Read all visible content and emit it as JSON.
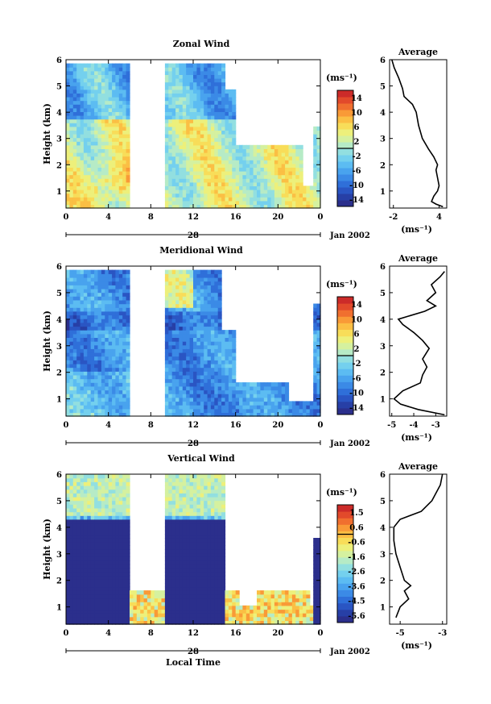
{
  "chart_data": [
    {
      "type": "heatmap",
      "title": "Zonal Wind",
      "ylabel": "Height (km)",
      "ylim": [
        0.35,
        6
      ],
      "yticks": [
        1,
        2,
        3,
        4,
        5,
        6
      ],
      "xticks": [
        "0",
        "4",
        "8",
        "12",
        "16",
        "20",
        "0"
      ],
      "date_axis": {
        "day": "28",
        "label": "Jan 2002"
      },
      "colorbar": {
        "unit": "(ms⁻¹)",
        "ticks": [
          "14",
          "10",
          "6",
          "2",
          "-2",
          "-6",
          "-10",
          "-14"
        ],
        "range": [
          -16,
          16
        ]
      },
      "colormap": [
        "#2b2f8c",
        "#273fa6",
        "#2a55c3",
        "#2f6fd9",
        "#3b8ae6",
        "#49a3ee",
        "#5cbcf2",
        "#74d0ee",
        "#92dfe0",
        "#b6ebc6",
        "#d5f19f",
        "#edf07b",
        "#f8dd59",
        "#fbbf44",
        "#f99a37",
        "#f06f2f",
        "#e24a2b",
        "#cc2b29"
      ],
      "average_profile": {
        "title": "Average",
        "xlabel": "(ms⁻¹)",
        "xticks": [
          "-2",
          "4"
        ],
        "xlim": [
          -2.5,
          5
        ],
        "ylim": [
          0.35,
          6
        ],
        "points": [
          [
            4.5,
            0.4
          ],
          [
            3.6,
            0.5
          ],
          [
            3.0,
            0.6
          ],
          [
            3.3,
            0.8
          ],
          [
            3.8,
            1.0
          ],
          [
            4.0,
            1.2
          ],
          [
            3.8,
            1.5
          ],
          [
            3.6,
            1.8
          ],
          [
            3.8,
            2.0
          ],
          [
            3.3,
            2.3
          ],
          [
            2.6,
            2.6
          ],
          [
            1.8,
            3.0
          ],
          [
            1.3,
            3.5
          ],
          [
            1.0,
            4.0
          ],
          [
            0.5,
            4.3
          ],
          [
            -0.6,
            4.6
          ],
          [
            -0.8,
            4.9
          ],
          [
            -1.3,
            5.3
          ],
          [
            -1.9,
            5.7
          ],
          [
            -2.2,
            6.0
          ]
        ]
      }
    },
    {
      "type": "heatmap",
      "title": "Meridional Wind",
      "ylabel": "Height (km)",
      "ylim": [
        0.35,
        6
      ],
      "yticks": [
        1,
        2,
        3,
        4,
        5,
        6
      ],
      "xticks": [
        "0",
        "4",
        "8",
        "12",
        "16",
        "20",
        "0"
      ],
      "date_axis": {
        "day": "28",
        "label": "Jan 2002"
      },
      "colorbar": {
        "unit": "(ms⁻¹)",
        "ticks": [
          "14",
          "10",
          "6",
          "2",
          "-2",
          "-6",
          "-10",
          "-14"
        ],
        "range": [
          -16,
          16
        ]
      },
      "colormap": [
        "#2b2f8c",
        "#273fa6",
        "#2a55c3",
        "#2f6fd9",
        "#3b8ae6",
        "#49a3ee",
        "#5cbcf2",
        "#74d0ee",
        "#92dfe0",
        "#b6ebc6",
        "#d5f19f",
        "#edf07b",
        "#f8dd59",
        "#fbbf44",
        "#f99a37",
        "#f06f2f",
        "#e24a2b",
        "#cc2b29"
      ],
      "average_profile": {
        "title": "Average",
        "xlabel": "(ms⁻¹)",
        "xticks": [
          "-5",
          "-4",
          "-3"
        ],
        "xlim": [
          -5.1,
          -2.5
        ],
        "ylim": [
          0.35,
          6
        ],
        "points": [
          [
            -2.6,
            0.4
          ],
          [
            -3.8,
            0.6
          ],
          [
            -4.6,
            0.8
          ],
          [
            -4.9,
            1.0
          ],
          [
            -4.5,
            1.3
          ],
          [
            -3.7,
            1.6
          ],
          [
            -3.6,
            1.9
          ],
          [
            -3.4,
            2.2
          ],
          [
            -3.6,
            2.5
          ],
          [
            -3.3,
            2.9
          ],
          [
            -3.6,
            3.2
          ],
          [
            -4.0,
            3.5
          ],
          [
            -4.5,
            3.8
          ],
          [
            -4.7,
            4.0
          ],
          [
            -3.5,
            4.3
          ],
          [
            -3.0,
            4.5
          ],
          [
            -3.4,
            4.7
          ],
          [
            -3.0,
            5.0
          ],
          [
            -3.2,
            5.3
          ],
          [
            -2.8,
            5.6
          ],
          [
            -2.6,
            5.8
          ]
        ]
      }
    },
    {
      "type": "heatmap",
      "title": "Vertical Wind",
      "ylabel": "Height (km)",
      "xlabel": "Local Time",
      "ylim": [
        0.35,
        6
      ],
      "yticks": [
        1,
        2,
        3,
        4,
        5,
        6
      ],
      "xticks": [
        "0",
        "4",
        "8",
        "12",
        "16",
        "20",
        "0"
      ],
      "date_axis": {
        "day": "28",
        "label": "Jan 2002"
      },
      "colorbar": {
        "unit": "(ms⁻¹)",
        "ticks": [
          "1.5",
          "0.6",
          "-0.6",
          "-1.6",
          "-2.6",
          "-3.6",
          "-4.5",
          "-5.6"
        ],
        "range": [
          -6,
          2
        ]
      },
      "colormap": [
        "#2b2f8c",
        "#273fa6",
        "#2a55c3",
        "#2f6fd9",
        "#3b8ae6",
        "#49a3ee",
        "#5cbcf2",
        "#74d0ee",
        "#92dfe0",
        "#b6ebc6",
        "#d5f19f",
        "#edf07b",
        "#f8dd59",
        "#fbbf44",
        "#f99a37",
        "#f06f2f",
        "#e24a2b",
        "#cc2b29"
      ],
      "average_profile": {
        "title": "Average",
        "xlabel": "(ms⁻¹)",
        "xticks": [
          "-5",
          "-3"
        ],
        "xlim": [
          -5.5,
          -2.8
        ],
        "ylim": [
          0.35,
          6
        ],
        "points": [
          [
            -5.2,
            0.6
          ],
          [
            -5.0,
            1.0
          ],
          [
            -4.6,
            1.3
          ],
          [
            -4.8,
            1.6
          ],
          [
            -4.5,
            1.8
          ],
          [
            -4.8,
            2.0
          ],
          [
            -5.0,
            2.5
          ],
          [
            -5.2,
            3.0
          ],
          [
            -5.3,
            3.5
          ],
          [
            -5.3,
            4.0
          ],
          [
            -5.0,
            4.3
          ],
          [
            -4.0,
            4.6
          ],
          [
            -3.5,
            5.0
          ],
          [
            -3.1,
            5.6
          ],
          [
            -3.0,
            6.0
          ]
        ]
      }
    }
  ]
}
